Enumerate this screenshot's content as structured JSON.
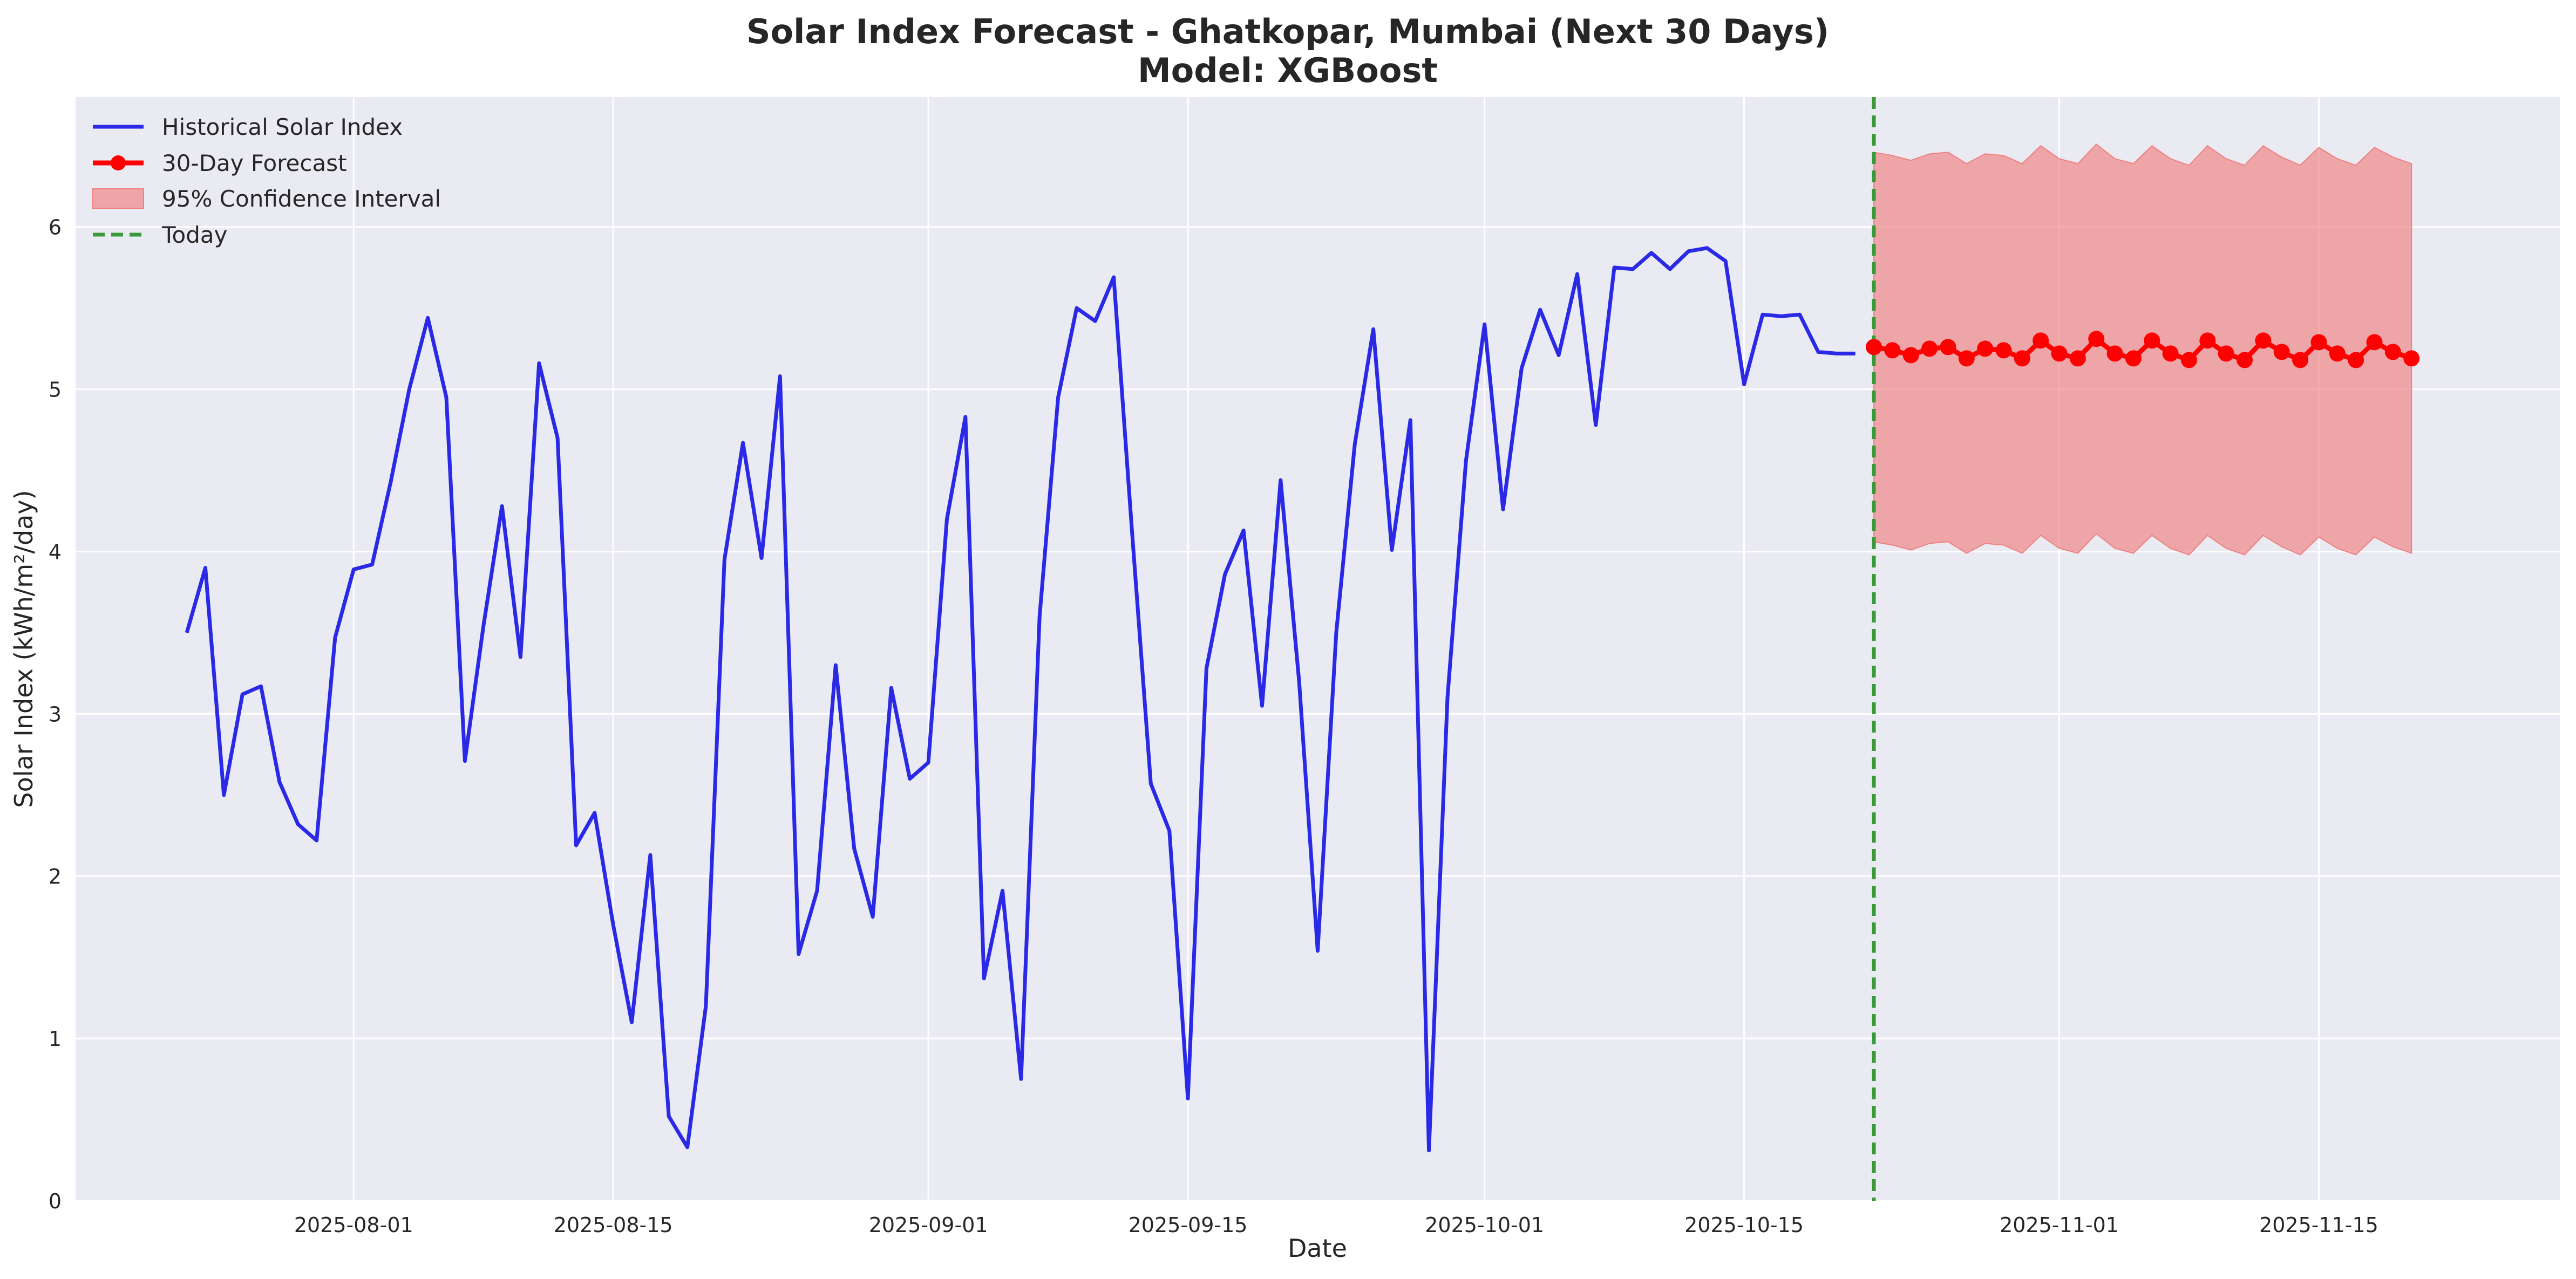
{
  "chart_data": {
    "type": "line",
    "title": "Solar Index Forecast - Ghatkopar, Mumbai (Next 30 Days)",
    "subtitle": "Model: XGBoost",
    "xlabel": "Date",
    "ylabel": "Solar Index (kWh/m²/day)",
    "x_type": "date",
    "xlim": [
      "2025-07-17",
      "2025-11-28"
    ],
    "ylim": [
      0,
      6.8
    ],
    "x_ticks": [
      "2025-08-01",
      "2025-08-15",
      "2025-09-01",
      "2025-09-15",
      "2025-10-01",
      "2025-10-15",
      "2025-11-01",
      "2025-11-15"
    ],
    "y_ticks": [
      0,
      1,
      2,
      3,
      4,
      5,
      6
    ],
    "grid": true,
    "legend_position": "top-left",
    "today": "2025-10-22",
    "colors": {
      "historical": "#2a2ae6",
      "forecast": "#ff0000",
      "ci_fill": "#f08080",
      "today": "#3a9a3a",
      "plot_bg": "#eaeaf2",
      "grid": "#ffffff"
    },
    "legend": [
      {
        "label": "Historical Solar Index",
        "style": "line",
        "color": "#2a2ae6"
      },
      {
        "label": "30-Day Forecast",
        "style": "line-marker",
        "color": "#ff0000"
      },
      {
        "label": "95% Confidence Interval",
        "style": "patch",
        "color": "#f08080"
      },
      {
        "label": "Today",
        "style": "dashed",
        "color": "#3a9a3a"
      }
    ],
    "series": [
      {
        "name": "Historical Solar Index",
        "x": [
          "2025-07-23",
          "2025-07-24",
          "2025-07-25",
          "2025-07-26",
          "2025-07-27",
          "2025-07-28",
          "2025-07-29",
          "2025-07-30",
          "2025-07-31",
          "2025-08-01",
          "2025-08-02",
          "2025-08-03",
          "2025-08-04",
          "2025-08-05",
          "2025-08-06",
          "2025-08-07",
          "2025-08-08",
          "2025-08-09",
          "2025-08-10",
          "2025-08-11",
          "2025-08-12",
          "2025-08-13",
          "2025-08-14",
          "2025-08-15",
          "2025-08-16",
          "2025-08-17",
          "2025-08-18",
          "2025-08-19",
          "2025-08-20",
          "2025-08-21",
          "2025-08-22",
          "2025-08-23",
          "2025-08-24",
          "2025-08-25",
          "2025-08-26",
          "2025-08-27",
          "2025-08-28",
          "2025-08-29",
          "2025-08-30",
          "2025-08-31",
          "2025-09-01",
          "2025-09-02",
          "2025-09-03",
          "2025-09-04",
          "2025-09-05",
          "2025-09-06",
          "2025-09-07",
          "2025-09-08",
          "2025-09-09",
          "2025-09-10",
          "2025-09-11",
          "2025-09-12",
          "2025-09-13",
          "2025-09-14",
          "2025-09-15",
          "2025-09-16",
          "2025-09-17",
          "2025-09-18",
          "2025-09-19",
          "2025-09-20",
          "2025-09-21",
          "2025-09-22",
          "2025-09-23",
          "2025-09-24",
          "2025-09-25",
          "2025-09-26",
          "2025-09-27",
          "2025-09-28",
          "2025-09-29",
          "2025-09-30",
          "2025-10-01",
          "2025-10-02",
          "2025-10-03",
          "2025-10-04",
          "2025-10-05",
          "2025-10-06",
          "2025-10-07",
          "2025-10-08",
          "2025-10-09",
          "2025-10-10",
          "2025-10-11",
          "2025-10-12",
          "2025-10-13",
          "2025-10-14",
          "2025-10-15",
          "2025-10-16",
          "2025-10-17",
          "2025-10-18",
          "2025-10-19",
          "2025-10-20",
          "2025-10-21"
        ],
        "values": [
          3.5,
          3.9,
          2.5,
          3.12,
          3.17,
          2.58,
          2.32,
          2.22,
          3.47,
          3.89,
          3.92,
          4.43,
          5.0,
          5.44,
          4.95,
          2.71,
          3.54,
          4.28,
          3.35,
          5.16,
          4.7,
          2.19,
          2.39,
          1.7,
          1.1,
          2.13,
          0.52,
          0.33,
          1.2,
          3.95,
          4.67,
          3.96,
          5.08,
          1.52,
          1.91,
          3.3,
          2.17,
          1.75,
          3.16,
          2.6,
          2.7,
          4.2,
          4.83,
          1.37,
          1.91,
          0.75,
          3.6,
          4.95,
          5.5,
          5.42,
          5.69,
          4.1,
          2.57,
          2.28,
          0.63,
          3.28,
          3.86,
          4.13,
          3.05,
          4.44,
          3.2,
          1.54,
          3.5,
          4.66,
          5.37,
          4.01,
          4.81,
          0.31,
          3.1,
          4.56,
          5.4,
          4.26,
          5.13,
          5.49,
          5.21,
          5.71,
          4.78,
          5.75,
          5.74,
          5.84,
          5.74,
          5.85,
          5.87,
          5.79,
          5.03,
          5.46,
          5.45,
          5.46,
          5.23,
          5.22,
          5.22
        ]
      },
      {
        "name": "30-Day Forecast",
        "x": [
          "2025-10-22",
          "2025-10-23",
          "2025-10-24",
          "2025-10-25",
          "2025-10-26",
          "2025-10-27",
          "2025-10-28",
          "2025-10-29",
          "2025-10-30",
          "2025-10-31",
          "2025-11-01",
          "2025-11-02",
          "2025-11-03",
          "2025-11-04",
          "2025-11-05",
          "2025-11-06",
          "2025-11-07",
          "2025-11-08",
          "2025-11-09",
          "2025-11-10",
          "2025-11-11",
          "2025-11-12",
          "2025-11-13",
          "2025-11-14",
          "2025-11-15",
          "2025-11-16",
          "2025-11-17",
          "2025-11-18",
          "2025-11-19",
          "2025-11-20"
        ],
        "values": [
          5.26,
          5.24,
          5.21,
          5.25,
          5.26,
          5.19,
          5.25,
          5.24,
          5.19,
          5.3,
          5.22,
          5.19,
          5.31,
          5.22,
          5.19,
          5.3,
          5.22,
          5.18,
          5.3,
          5.22,
          5.18,
          5.3,
          5.23,
          5.18,
          5.29,
          5.22,
          5.18,
          5.29,
          5.23,
          5.19
        ],
        "ci_upper": [
          6.46,
          6.44,
          6.41,
          6.45,
          6.46,
          6.39,
          6.45,
          6.44,
          6.39,
          6.5,
          6.42,
          6.39,
          6.51,
          6.42,
          6.39,
          6.5,
          6.42,
          6.38,
          6.5,
          6.42,
          6.38,
          6.5,
          6.43,
          6.38,
          6.49,
          6.42,
          6.38,
          6.49,
          6.43,
          6.39
        ],
        "ci_lower": [
          4.06,
          4.04,
          4.01,
          4.05,
          4.06,
          3.99,
          4.05,
          4.04,
          3.99,
          4.1,
          4.02,
          3.99,
          4.11,
          4.02,
          3.99,
          4.1,
          4.02,
          3.98,
          4.1,
          4.02,
          3.98,
          4.1,
          4.03,
          3.98,
          4.09,
          4.02,
          3.98,
          4.09,
          4.03,
          3.99
        ]
      }
    ]
  }
}
